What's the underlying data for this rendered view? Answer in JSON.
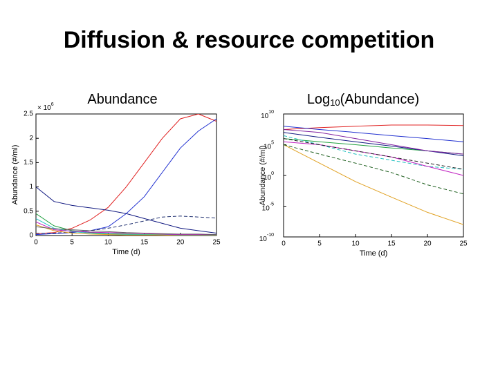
{
  "title": "Diffusion & resource competition",
  "chart_data": [
    {
      "type": "line",
      "title": "Abundance",
      "xlabel": "Time (d)",
      "ylabel": "Abundance (#/ml)",
      "y_offset_base": "× 10",
      "y_offset_exponent": "6",
      "x": [
        0,
        2.5,
        5,
        7.5,
        10,
        12.5,
        15,
        17.5,
        20,
        22.5,
        25
      ],
      "xlim": [
        0,
        25
      ],
      "xticks": [
        0,
        5,
        10,
        15,
        20,
        25
      ],
      "ylim": [
        0,
        2.5
      ],
      "yticks": [
        0,
        0.5,
        1,
        1.5,
        2,
        2.5
      ],
      "yscale": "linear",
      "series": [
        {
          "color": "#e02020",
          "values": [
            0.04,
            0.06,
            0.15,
            0.32,
            0.58,
            1.0,
            1.5,
            2.0,
            2.4,
            2.5,
            2.35
          ]
        },
        {
          "color": "#2030d0",
          "values": [
            0.02,
            0.04,
            0.06,
            0.1,
            0.18,
            0.45,
            0.8,
            1.3,
            1.8,
            2.15,
            2.4
          ]
        },
        {
          "color": "#101880",
          "values": [
            1.0,
            0.7,
            0.62,
            0.57,
            0.52,
            0.45,
            0.35,
            0.25,
            0.15,
            0.1,
            0.05
          ]
        },
        {
          "color": "#203070",
          "linestyle": "dashed",
          "values": [
            0.05,
            0.05,
            0.07,
            0.1,
            0.15,
            0.22,
            0.3,
            0.38,
            0.4,
            0.38,
            0.36
          ]
        },
        {
          "color": "#20a040",
          "values": [
            0.45,
            0.2,
            0.1,
            0.06,
            0.04,
            0.03,
            0.02,
            0.02,
            0.01,
            0.01,
            0.01
          ]
        },
        {
          "color": "#20c0c0",
          "values": [
            0.35,
            0.15,
            0.08,
            0.05,
            0.03,
            0.02,
            0.02,
            0.01,
            0.01,
            0.01,
            0.01
          ]
        },
        {
          "color": "#c020c0",
          "values": [
            0.28,
            0.12,
            0.09,
            0.07,
            0.06,
            0.05,
            0.04,
            0.03,
            0.02,
            0.02,
            0.02
          ]
        },
        {
          "color": "#e0a020",
          "values": [
            0.22,
            0.1,
            0.05,
            0.03,
            0.02,
            0.01,
            0.01,
            0.01,
            0.0,
            0.0,
            0.0
          ]
        },
        {
          "color": "#606060",
          "values": [
            0.18,
            0.14,
            0.12,
            0.1,
            0.08,
            0.06,
            0.05,
            0.04,
            0.03,
            0.03,
            0.02
          ]
        }
      ]
    },
    {
      "type": "line",
      "title": "Log",
      "title_subscript": "10",
      "title_suffix": "(Abundance)",
      "xlabel": "Time (d)",
      "ylabel": "Abundance (#/ml)",
      "x": [
        0,
        5,
        10,
        15,
        20,
        25
      ],
      "xlim": [
        0,
        25
      ],
      "xticks": [
        0,
        5,
        10,
        15,
        20,
        25
      ],
      "ylim": [
        1e-10,
        10000000000.0
      ],
      "yscale": "log",
      "yticks": [
        {
          "value": 1e-10,
          "label": "10",
          "exponent": "-10"
        },
        {
          "value": 1e-05,
          "label": "10",
          "exponent": "-5"
        },
        {
          "value": 1,
          "label": "10",
          "exponent": "0"
        },
        {
          "value": 100000.0,
          "label": "10",
          "exponent": "5"
        },
        {
          "value": 10000000000.0,
          "label": "10",
          "exponent": "10"
        }
      ],
      "series": [
        {
          "color": "#e02020",
          "values": [
            30000000.0,
            60000000.0,
            100000000.0,
            160000000.0,
            160000000.0,
            130000000.0
          ]
        },
        {
          "color": "#2030d0",
          "values": [
            100000000.0,
            30000000.0,
            10000000.0,
            3000000.0,
            1000000.0,
            300000.0
          ]
        },
        {
          "color": "#20a040",
          "values": [
            1000000.0,
            300000.0,
            100000.0,
            30000.0,
            10000.0,
            3000.0
          ]
        },
        {
          "color": "#101880",
          "values": [
            10000000.0,
            1600000.0,
            300000.0,
            60000.0,
            10000.0,
            1600.0
          ]
        },
        {
          "color": "#e0a020",
          "values": [
            100000.0,
            100,
            0.1,
            0.0003,
            1e-06,
            1e-08
          ]
        },
        {
          "color": "#20c0c0",
          "linestyle": "dashed",
          "values": [
            3000000.0,
            100000.0,
            3000.0,
            300,
            30,
            10
          ]
        },
        {
          "color": "#c020c0",
          "values": [
            300000.0,
            100000.0,
            10000.0,
            1000.0,
            30,
            1
          ]
        },
        {
          "color": "#206020",
          "linestyle": "dashed",
          "values": [
            100000.0,
            3000.0,
            100,
            3,
            0.03,
            0.001
          ]
        },
        {
          "color": "#8020a0",
          "values": [
            30000000.0,
            10000000.0,
            1000000.0,
            100000.0,
            10000.0,
            3000.0
          ]
        },
        {
          "color": "#202020",
          "linestyle": "dashed",
          "values": [
            1000000.0,
            100000.0,
            10000.0,
            1000.0,
            100,
            10
          ]
        }
      ]
    }
  ]
}
